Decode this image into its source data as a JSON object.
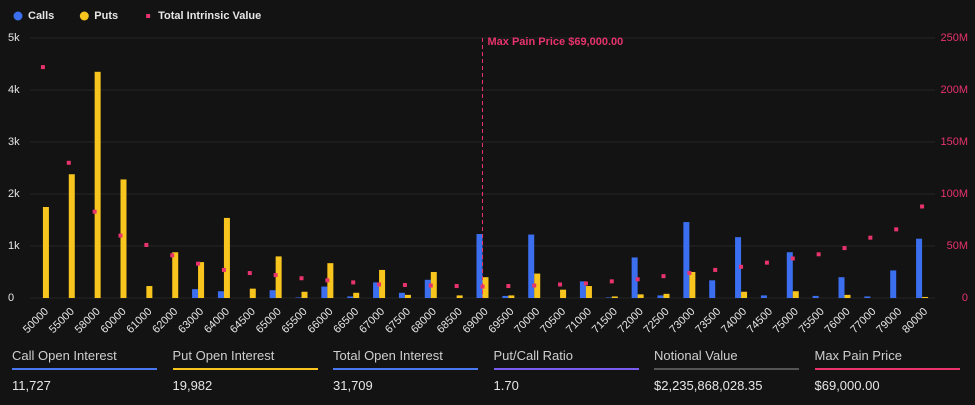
{
  "chart_data": {
    "type": "bar",
    "categories": [
      "50000",
      "55000",
      "58000",
      "60000",
      "61000",
      "62000",
      "63000",
      "64000",
      "64500",
      "65000",
      "65500",
      "66000",
      "66500",
      "67000",
      "67500",
      "68000",
      "68500",
      "69000",
      "69500",
      "70000",
      "70500",
      "71000",
      "71500",
      "72000",
      "72500",
      "73000",
      "73500",
      "74000",
      "74500",
      "75000",
      "75500",
      "76000",
      "77000",
      "79000",
      "80000"
    ],
    "series": [
      {
        "name": "Calls",
        "color": "#3b6ff0",
        "values": [
          0,
          0,
          0,
          0,
          0,
          0,
          170,
          130,
          0,
          150,
          10,
          220,
          30,
          300,
          100,
          350,
          0,
          1230,
          40,
          1220,
          0,
          320,
          10,
          780,
          50,
          1460,
          340,
          1170,
          50,
          880,
          40,
          400,
          30,
          530,
          1140
        ]
      },
      {
        "name": "Puts",
        "color": "#f7c51d",
        "values": [
          1750,
          2380,
          4350,
          2280,
          230,
          880,
          690,
          1540,
          180,
          800,
          120,
          670,
          100,
          540,
          60,
          500,
          50,
          400,
          50,
          470,
          160,
          230,
          30,
          70,
          80,
          500,
          0,
          120,
          0,
          130,
          0,
          60,
          0,
          0,
          20
        ]
      },
      {
        "name": "Total Intrinsic Value",
        "color": "#e8336d",
        "type": "scatter",
        "axis": "y2",
        "values": [
          222000000,
          130000000,
          83000000,
          60000000,
          51000000,
          41000000,
          33000000,
          27000000,
          24000000,
          22000000,
          19000000,
          17000000,
          15000000,
          13000000,
          12500000,
          12000000,
          11500000,
          11000000,
          11500000,
          12000000,
          13000000,
          14000000,
          16000000,
          18000000,
          21000000,
          24000000,
          27000000,
          30000000,
          34000000,
          38000000,
          42000000,
          48000000,
          58000000,
          66000000,
          88000000
        ]
      }
    ],
    "ylim": [
      0,
      5000
    ],
    "yticks": [
      0,
      {
        "value": 1000,
        "label": "1k"
      },
      {
        "value": 2000,
        "label": "2k"
      },
      {
        "value": 3000,
        "label": "3k"
      },
      {
        "value": 4000,
        "label": "4k"
      },
      {
        "value": 5000,
        "label": "5k"
      }
    ],
    "y2lim": [
      0,
      250000000
    ],
    "y2ticks": [
      0,
      {
        "value": 50000000,
        "label": "50M"
      },
      {
        "value": 100000000,
        "label": "100M"
      },
      {
        "value": 150000000,
        "label": "150M"
      },
      {
        "value": 200000000,
        "label": "200M"
      },
      {
        "value": 250000000,
        "label": "250M"
      }
    ],
    "grid": true,
    "annotation": {
      "text": "Max Pain Price $69,000.00",
      "category": "69000",
      "color": "#e8336d"
    }
  },
  "stats": [
    {
      "label": "Call Open Interest",
      "value": "11,727",
      "color": "#4a78f0"
    },
    {
      "label": "Put Open Interest",
      "value": "19,982",
      "color": "#f7c51d"
    },
    {
      "label": "Total Open Interest",
      "value": "31,709",
      "color": "#4a78f0"
    },
    {
      "label": "Put/Call Ratio",
      "value": "1.70",
      "color": "#7b5cf0"
    },
    {
      "label": "Notional Value",
      "value": "$2,235,868,028.35",
      "color": "#555555"
    },
    {
      "label": "Max Pain Price",
      "value": "$69,000.00",
      "color": "#e8336d"
    }
  ]
}
